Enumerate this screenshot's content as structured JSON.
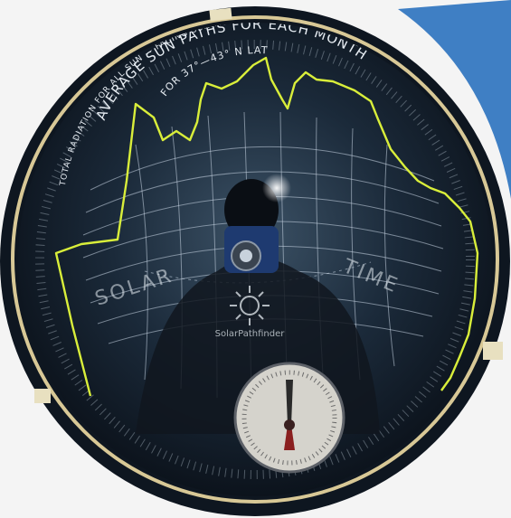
{
  "dome_text": {
    "outer_arc": "TOTAL RADIATION FOR ALL SUN — FACING SURFACES",
    "middle_arc": "AVERAGE SUN PATHS FOR EACH MONTH",
    "inner_arc": "FOR 37°—43° N LAT",
    "left_label": "SOLAR",
    "right_label": "TIME"
  },
  "logo_text": "SolarPathfinder",
  "colors": {
    "dome": "#1a2636",
    "rim": "#d8c896",
    "grid": "#c9d6e3",
    "horizon_trace": "#d9ee3a"
  },
  "icons": [
    "compass-icon",
    "bubble-level-icon",
    "sun-logo-icon"
  ]
}
